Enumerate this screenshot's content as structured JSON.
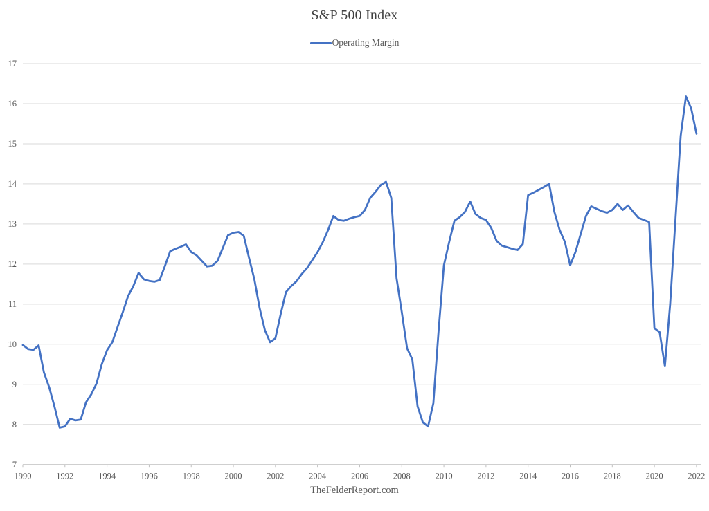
{
  "header": {
    "title": "S&P 500 Index"
  },
  "legend": {
    "label": "Operating Margin"
  },
  "footer": {
    "text": "TheFelderReport.com"
  },
  "chart_data": {
    "type": "line",
    "title": "S&P 500 Index",
    "xlabel": "",
    "ylabel": "",
    "legend_position": "top-center",
    "grid": "horizontal-only",
    "grid_color": "#D9D9D9",
    "axis_color": "#BFBFBF",
    "text_color": "#595959",
    "title_color": "#404040",
    "background_color": "#FFFFFF",
    "ylim": [
      7,
      17
    ],
    "xlim": [
      1990,
      2022.2
    ],
    "y_ticks": [
      7,
      8,
      9,
      10,
      11,
      12,
      13,
      14,
      15,
      16,
      17
    ],
    "x_tick_years": [
      1990,
      1992,
      1994,
      1996,
      1998,
      2000,
      2002,
      2004,
      2006,
      2008,
      2010,
      2012,
      2014,
      2016,
      2018,
      2020,
      2022
    ],
    "x_start_year": 1990,
    "x_step_years": 0.25,
    "series": [
      {
        "name": "Operating Margin",
        "color": "#4472C4",
        "line_width": 2.8,
        "values": [
          9.98,
          9.88,
          9.86,
          9.97,
          9.3,
          8.93,
          8.45,
          7.92,
          7.95,
          8.14,
          8.1,
          8.12,
          8.55,
          8.75,
          9.02,
          9.5,
          9.85,
          10.05,
          10.43,
          10.8,
          11.2,
          11.45,
          11.78,
          11.62,
          11.58,
          11.56,
          11.6,
          11.95,
          12.32,
          12.38,
          12.43,
          12.49,
          12.3,
          12.22,
          12.08,
          11.94,
          11.96,
          12.08,
          12.4,
          12.72,
          12.78,
          12.8,
          12.7,
          12.15,
          11.62,
          10.9,
          10.35,
          10.05,
          10.15,
          10.75,
          11.3,
          11.45,
          11.57,
          11.75,
          11.9,
          12.1,
          12.3,
          12.55,
          12.85,
          13.2,
          13.1,
          13.08,
          13.13,
          13.17,
          13.2,
          13.35,
          13.65,
          13.8,
          13.97,
          14.05,
          13.65,
          11.65,
          10.8,
          9.9,
          9.62,
          8.45,
          8.05,
          7.95,
          8.53,
          10.35,
          11.97,
          12.55,
          13.08,
          13.17,
          13.3,
          13.56,
          13.25,
          13.15,
          13.1,
          12.9,
          12.58,
          12.46,
          12.42,
          12.38,
          12.35,
          12.5,
          13.72,
          13.78,
          13.85,
          13.92,
          14.0,
          13.3,
          12.85,
          12.55,
          11.97,
          12.3,
          12.75,
          13.2,
          13.44,
          13.38,
          13.32,
          13.28,
          13.35,
          13.5,
          13.35,
          13.46,
          13.3,
          13.15,
          13.1,
          13.05,
          10.4,
          10.3,
          9.45,
          11.0,
          13.1,
          15.2,
          16.18,
          15.88,
          15.25
        ]
      }
    ]
  }
}
